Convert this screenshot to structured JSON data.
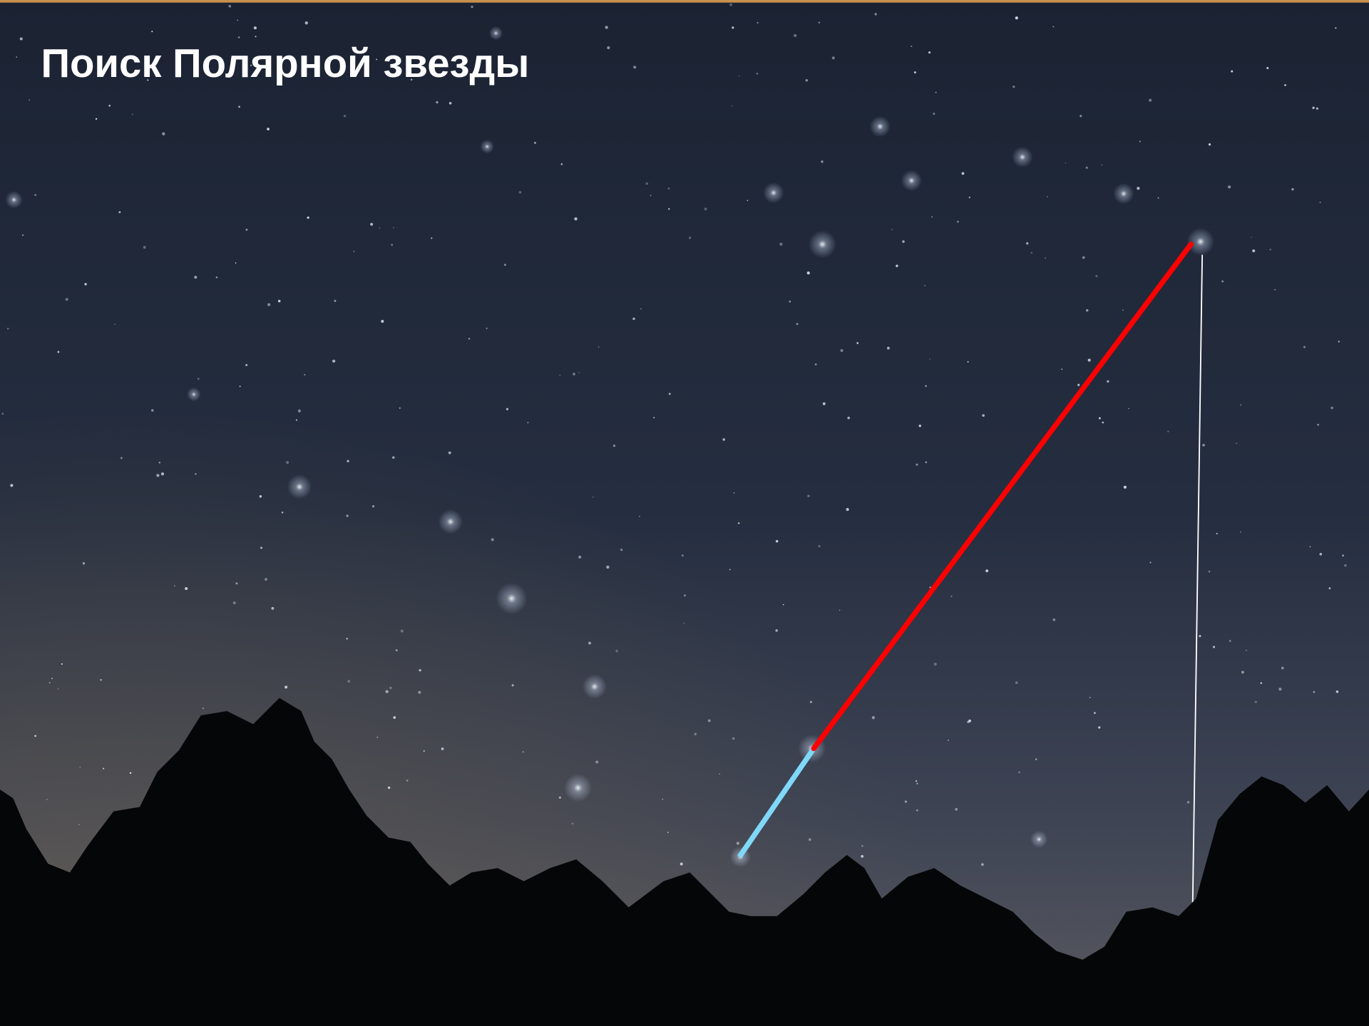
{
  "title": "Поиск Полярной звезды"
}
